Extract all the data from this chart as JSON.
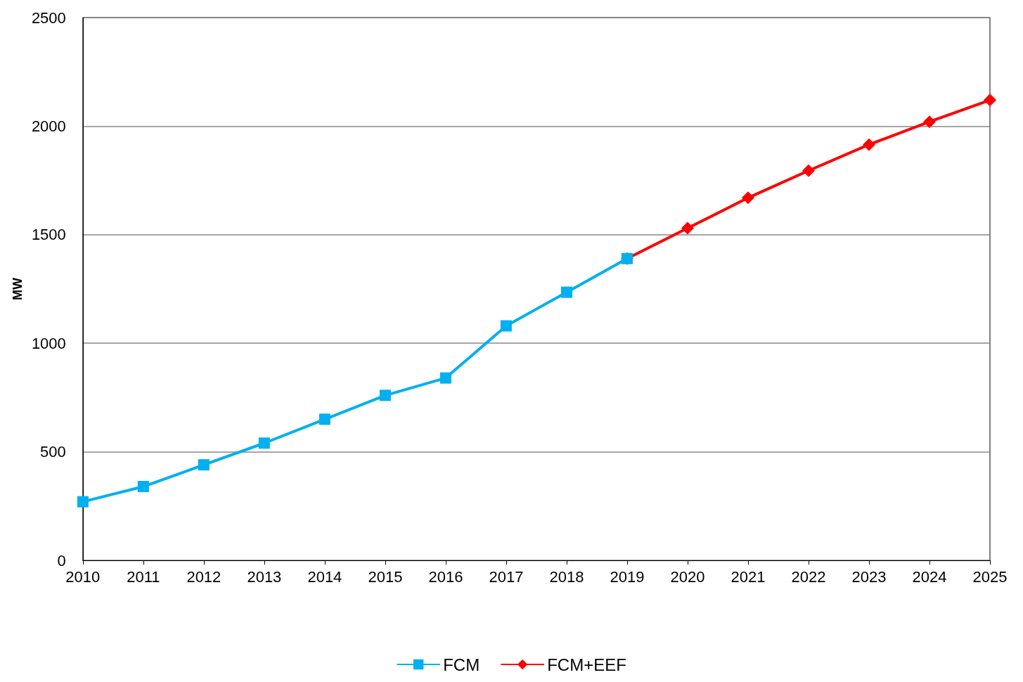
{
  "chart_data": {
    "type": "line",
    "ylabel": "MW",
    "categories": [
      "2010",
      "2011",
      "2012",
      "2013",
      "2014",
      "2015",
      "2016",
      "2017",
      "2018",
      "2019",
      "2020",
      "2021",
      "2022",
      "2023",
      "2024",
      "2025"
    ],
    "series": [
      {
        "name": "FCM",
        "color": "#00b0f0",
        "marker": "square",
        "values": [
          270,
          340,
          440,
          540,
          650,
          760,
          840,
          1080,
          1235,
          1390,
          null,
          null,
          null,
          null,
          null,
          null
        ]
      },
      {
        "name": "FCM+EEF",
        "color": "#ff0000",
        "marker": "diamond",
        "values": [
          null,
          null,
          null,
          null,
          null,
          null,
          null,
          null,
          null,
          1390,
          1530,
          1670,
          1795,
          1915,
          2020,
          2120
        ]
      }
    ],
    "ylim": [
      0,
      2500
    ],
    "yticks": [
      0,
      500,
      1000,
      1500,
      2000,
      2500
    ],
    "grid": "y",
    "legend": "bottom",
    "line_style": "solid"
  }
}
